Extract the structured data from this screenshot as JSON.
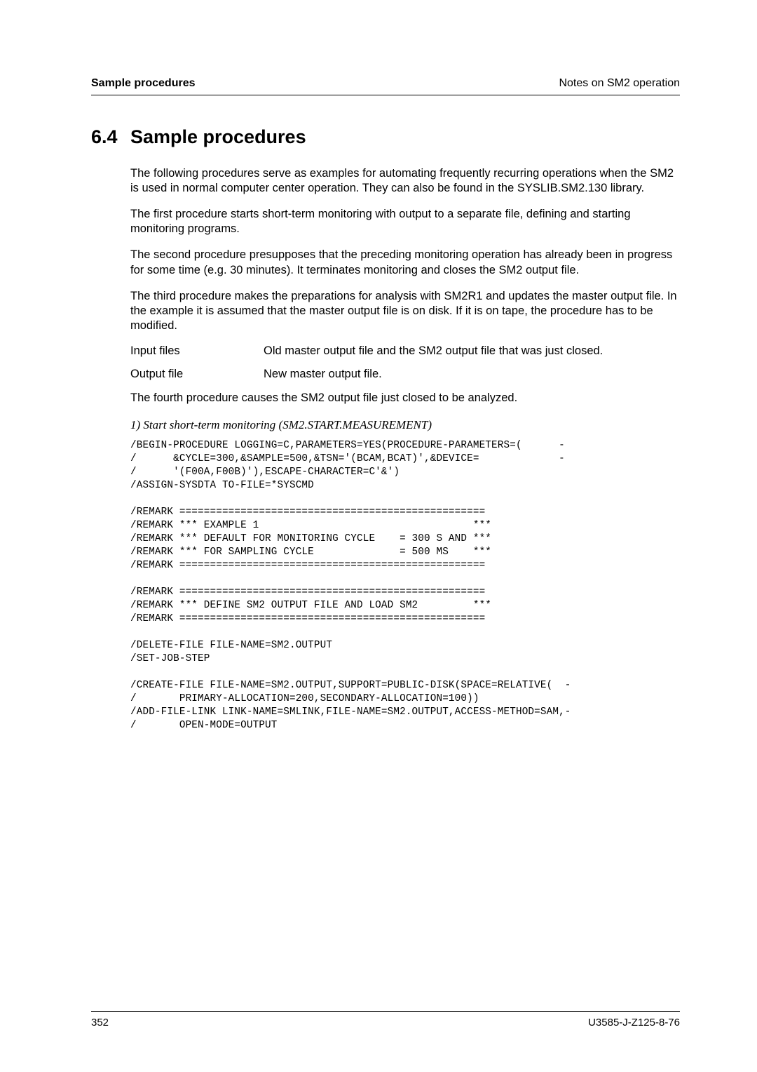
{
  "header": {
    "left": "Sample procedures",
    "right": "Notes on SM2 operation"
  },
  "section": {
    "number": "6.4",
    "title": "Sample procedures"
  },
  "paragraphs": {
    "p1": "The following procedures serve as examples for automating frequently recurring operations when the SM2 is used in normal computer center operation. They can also be found in the SYSLIB.SM2.130 library.",
    "p2": "The first procedure starts short-term monitoring with output to a separate file, defining and starting monitoring programs.",
    "p3": "The second procedure presupposes that the preceding monitoring operation has already been in progress for some time (e.g. 30 minutes). It terminates monitoring and closes the SM2 output file.",
    "p4": "The third procedure makes the preparations for analysis with SM2R1 and updates the master output file. In the example it is assumed that the master output file is on disk. If it is on tape, the procedure has to be modified.",
    "io_input_label": "Input files",
    "io_input_value": "Old master output file and the SM2 output file that was just closed.",
    "io_output_label": "Output file",
    "io_output_value": "New master output file.",
    "p5": "The fourth procedure causes the SM2 output file just closed to be analyzed.",
    "subheading": "1) Start short-term monitoring (SM2.START.MEASUREMENT)"
  },
  "code": "/BEGIN-PROCEDURE LOGGING=C,PARAMETERS=YES(PROCEDURE-PARAMETERS=(      -\n/      &CYCLE=300,&SAMPLE=500,&TSN='(BCAM,BCAT)',&DEVICE=             -\n/      '(F00A,F00B)'),ESCAPE-CHARACTER=C'&')\n/ASSIGN-SYSDTA TO-FILE=*SYSCMD\n\n/REMARK ==================================================\n/REMARK *** EXAMPLE 1                                   ***\n/REMARK *** DEFAULT FOR MONITORING CYCLE    = 300 S AND ***\n/REMARK *** FOR SAMPLING CYCLE              = 500 MS    ***\n/REMARK ==================================================\n\n/REMARK ==================================================\n/REMARK *** DEFINE SM2 OUTPUT FILE AND LOAD SM2         ***\n/REMARK ==================================================\n\n/DELETE-FILE FILE-NAME=SM2.OUTPUT\n/SET-JOB-STEP\n\n/CREATE-FILE FILE-NAME=SM2.OUTPUT,SUPPORT=PUBLIC-DISK(SPACE=RELATIVE(  -\n/       PRIMARY-ALLOCATION=200,SECONDARY-ALLOCATION=100))\n/ADD-FILE-LINK LINK-NAME=SMLINK,FILE-NAME=SM2.OUTPUT,ACCESS-METHOD=SAM,-\n/       OPEN-MODE=OUTPUT",
  "footer": {
    "page": "352",
    "doc_id": "U3585-J-Z125-8-76"
  }
}
